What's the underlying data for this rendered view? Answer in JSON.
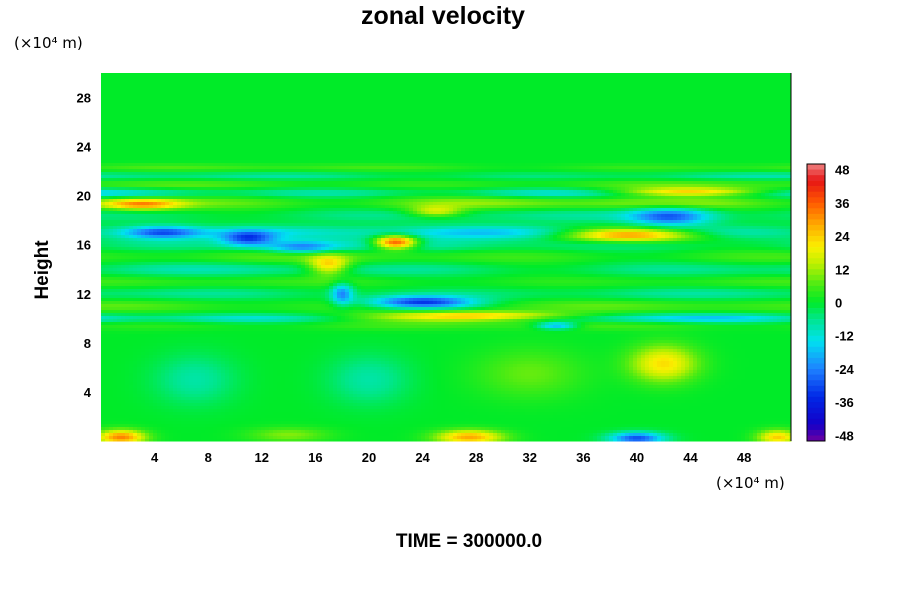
{
  "chart_data": {
    "type": "heatmap",
    "title": "zonal velocity",
    "ylabel": "Height",
    "xlabel": "",
    "x_unit": "(×10⁴ m)",
    "y_unit": "(×10⁴ m)",
    "xlim": [
      0,
      51.5
    ],
    "ylim": [
      0,
      30
    ],
    "x_ticks": [
      4,
      8,
      12,
      16,
      20,
      24,
      28,
      32,
      36,
      40,
      44,
      48
    ],
    "y_ticks": [
      4,
      8,
      12,
      16,
      20,
      24,
      28
    ],
    "colorbar": {
      "range": [
        -50,
        50
      ],
      "tick_values": [
        48,
        36,
        24,
        12,
        0,
        -12,
        -24,
        -36,
        -48
      ],
      "tick_labels": [
        "48",
        "36",
        "24",
        "12",
        "0",
        "-12",
        "-24",
        "-36",
        "-48"
      ]
    },
    "background_value": 0,
    "bands": [
      {
        "y": 22.3,
        "w": 0.3,
        "amp": 7
      },
      {
        "y": 21.6,
        "w": 0.3,
        "amp": -9
      },
      {
        "y": 20.9,
        "w": 0.35,
        "amp": 8
      },
      {
        "y": 20.2,
        "w": 0.4,
        "amp": -16
      },
      {
        "y": 19.4,
        "w": 0.55,
        "amp": 14
      },
      {
        "y": 18.4,
        "w": 0.6,
        "amp": -8
      },
      {
        "y": 17.0,
        "w": 0.55,
        "amp": -18
      },
      {
        "y": 16.0,
        "w": 0.6,
        "amp": -10
      },
      {
        "y": 15.0,
        "w": 0.6,
        "amp": 8
      },
      {
        "y": 14.0,
        "w": 0.6,
        "amp": -10
      },
      {
        "y": 13.0,
        "w": 0.5,
        "amp": 6
      },
      {
        "y": 12.0,
        "w": 0.5,
        "amp": -8
      },
      {
        "y": 11.0,
        "w": 0.5,
        "amp": 8
      },
      {
        "y": 10.0,
        "w": 0.35,
        "amp": -22
      },
      {
        "y": 9.4,
        "w": 0.4,
        "amp": 6
      }
    ],
    "blobs": [
      {
        "x": 22.0,
        "y": 16.2,
        "sx": 1.6,
        "sy": 0.55,
        "v": 44
      },
      {
        "x": 24.0,
        "y": 11.3,
        "sx": 4.0,
        "sy": 0.5,
        "v": -34
      },
      {
        "x": 28.0,
        "y": 10.1,
        "sx": 7.0,
        "sy": 0.4,
        "v": 40
      },
      {
        "x": 39.5,
        "y": 16.8,
        "sx": 5.0,
        "sy": 0.55,
        "v": 34
      },
      {
        "x": 44.0,
        "y": 20.3,
        "sx": 6.0,
        "sy": 0.35,
        "v": 30
      },
      {
        "x": 42.5,
        "y": 18.3,
        "sx": 3.0,
        "sy": 0.75,
        "v": -26
      },
      {
        "x": 3.0,
        "y": 19.3,
        "sx": 3.0,
        "sy": 0.45,
        "v": 28
      },
      {
        "x": 4.5,
        "y": 17.0,
        "sx": 3.0,
        "sy": 0.5,
        "v": -28
      },
      {
        "x": 11.0,
        "y": 16.5,
        "sx": 2.0,
        "sy": 0.6,
        "v": -26
      },
      {
        "x": 15.0,
        "y": 15.8,
        "sx": 2.5,
        "sy": 0.5,
        "v": -20
      },
      {
        "x": 17.0,
        "y": 14.3,
        "sx": 1.5,
        "sy": 0.8,
        "v": 24
      },
      {
        "x": 18.0,
        "y": 12.0,
        "sx": 0.8,
        "sy": 0.9,
        "v": -22
      },
      {
        "x": 25.0,
        "y": 18.7,
        "sx": 2.0,
        "sy": 0.45,
        "v": 18
      },
      {
        "x": 34.0,
        "y": 9.4,
        "sx": 1.5,
        "sy": 0.3,
        "v": -22
      },
      {
        "x": 42.0,
        "y": 6.3,
        "sx": 2.5,
        "sy": 1.5,
        "v": 22
      },
      {
        "x": 20.0,
        "y": 5.0,
        "sx": 3.0,
        "sy": 2.0,
        "v": -8
      },
      {
        "x": 7.0,
        "y": 5.0,
        "sx": 3.0,
        "sy": 2.0,
        "v": -8
      },
      {
        "x": 32.0,
        "y": 5.5,
        "sx": 4.0,
        "sy": 2.0,
        "v": 8
      },
      {
        "x": 1.5,
        "y": 0.3,
        "sx": 1.8,
        "sy": 0.6,
        "v": 32
      },
      {
        "x": 27.5,
        "y": 0.3,
        "sx": 2.5,
        "sy": 0.6,
        "v": 28
      },
      {
        "x": 40.0,
        "y": 0.2,
        "sx": 2.0,
        "sy": 0.5,
        "v": -30
      },
      {
        "x": 50.5,
        "y": 0.3,
        "sx": 1.5,
        "sy": 0.6,
        "v": 24
      },
      {
        "x": 14.0,
        "y": 0.5,
        "sx": 3.0,
        "sy": 0.6,
        "v": 10
      }
    ],
    "time_label": "TIME = 300000.0"
  }
}
